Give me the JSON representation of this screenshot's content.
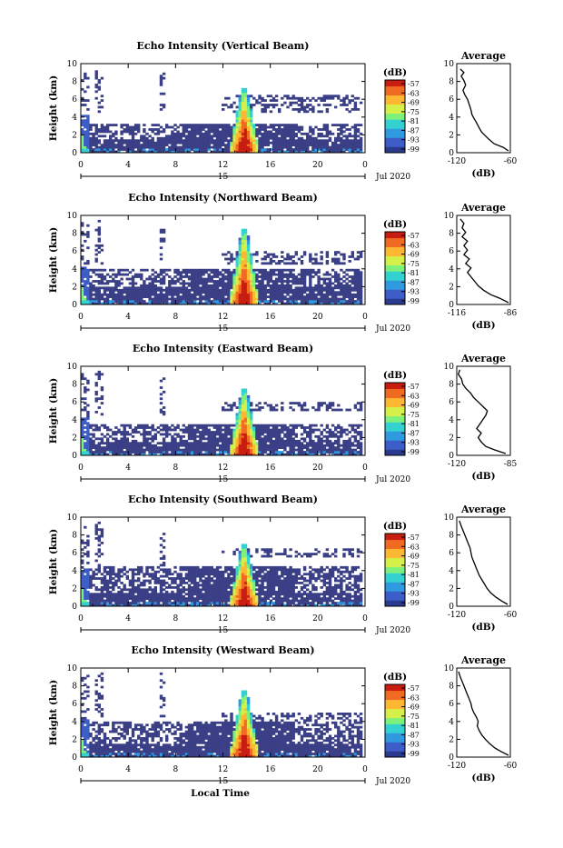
{
  "figure": {
    "bottom_xlabel": "Local Time",
    "date_label": "Jul 2020",
    "colors": {
      "colormap": [
        "#2a3b8f",
        "#3d5dc8",
        "#2f9ae0",
        "#33d1d0",
        "#7ef07c",
        "#d6f04a",
        "#fdb733",
        "#f06a22",
        "#c81d10"
      ],
      "background_echo": "#3a3f86",
      "frame": "#000000"
    }
  },
  "chart_data": [
    {
      "type": "heatmap",
      "title": "Echo Intensity (Vertical Beam)",
      "ylabel": "Height (km)",
      "y_ticks": [
        "0",
        "2",
        "4",
        "6",
        "8",
        "10"
      ],
      "ylim": [
        0,
        10
      ],
      "x_ticks": [
        "0",
        "4",
        "8",
        "12",
        "16",
        "20",
        "0"
      ],
      "xlim": [
        0,
        24
      ],
      "day_marker": "15",
      "date_label": "Jul 2020",
      "colorbar": {
        "unit": "(dB)",
        "ticks": [
          "-57",
          "-63",
          "-69",
          "-75",
          "-81",
          "-87",
          "-93",
          "-99"
        ]
      },
      "profile": {
        "title": "Average",
        "xlabel": "(dB)",
        "x_ticks": [
          "-120",
          "-60"
        ],
        "xlim": [
          -120,
          -60
        ],
        "y_ticks": [
          "0",
          "2",
          "4",
          "6",
          "8",
          "10"
        ],
        "ylim": [
          0,
          10
        ],
        "points": [
          [
            -62,
            0.2
          ],
          [
            -68,
            0.6
          ],
          [
            -78,
            1.0
          ],
          [
            -84,
            1.5
          ],
          [
            -88,
            1.9
          ],
          [
            -92,
            2.3
          ],
          [
            -95,
            2.8
          ],
          [
            -98,
            3.4
          ],
          [
            -101,
            3.9
          ],
          [
            -103,
            4.3
          ],
          [
            -104,
            4.8
          ],
          [
            -106,
            5.4
          ],
          [
            -108,
            6.0
          ],
          [
            -111,
            6.5
          ],
          [
            -113,
            7.0
          ],
          [
            -110,
            7.6
          ],
          [
            -112,
            8.1
          ],
          [
            -115,
            8.6
          ],
          [
            -112,
            9.0
          ],
          [
            -116,
            9.4
          ]
        ]
      },
      "features": {
        "convective_core": {
          "x_center": 13.8,
          "top_km": 7.3,
          "peak_db": -57
        },
        "surface_layer_top_km": 1.5,
        "stratiform_layer_km": [
          1.5,
          3.2
        ],
        "upper_layer_km": [
          4.5,
          6.5
        ]
      }
    },
    {
      "type": "heatmap",
      "title": "Echo Intensity (Northward Beam)",
      "ylabel": "Height (km)",
      "y_ticks": [
        "0",
        "2",
        "4",
        "6",
        "8",
        "10"
      ],
      "ylim": [
        0,
        10
      ],
      "x_ticks": [
        "0",
        "4",
        "8",
        "12",
        "16",
        "20",
        "0"
      ],
      "xlim": [
        0,
        24
      ],
      "day_marker": "15",
      "date_label": "Jul 2020",
      "colorbar": {
        "unit": "(dB)",
        "ticks": [
          "-57",
          "-63",
          "-69",
          "-75",
          "-81",
          "-87",
          "-93",
          "-99"
        ]
      },
      "profile": {
        "title": "Average",
        "xlabel": "(dB)",
        "x_ticks": [
          "-116",
          "-86"
        ],
        "xlim": [
          -116,
          -86
        ],
        "y_ticks": [
          "0",
          "2",
          "4",
          "6",
          "8",
          "10"
        ],
        "ylim": [
          0,
          10
        ],
        "points": [
          [
            -87,
            0.2
          ],
          [
            -92,
            0.7
          ],
          [
            -97,
            1.1
          ],
          [
            -101,
            1.6
          ],
          [
            -104,
            2.1
          ],
          [
            -106,
            2.6
          ],
          [
            -108,
            3.1
          ],
          [
            -110,
            3.6
          ],
          [
            -108,
            4.1
          ],
          [
            -111,
            4.6
          ],
          [
            -109,
            5.1
          ],
          [
            -112,
            5.6
          ],
          [
            -110,
            6.1
          ],
          [
            -112,
            6.6
          ],
          [
            -110,
            7.1
          ],
          [
            -113,
            7.6
          ],
          [
            -111,
            8.1
          ],
          [
            -113,
            8.6
          ],
          [
            -112,
            9.1
          ],
          [
            -114,
            9.6
          ]
        ]
      },
      "features": {
        "convective_core": {
          "x_center": 13.8,
          "top_km": 8.5,
          "peak_db": -57
        },
        "surface_layer_top_km": 2.0,
        "stratiform_layer_km": [
          1.0,
          4.0
        ],
        "upper_layer_km": [
          4.5,
          6.0
        ]
      }
    },
    {
      "type": "heatmap",
      "title": "Echo Intensity (Eastward Beam)",
      "ylabel": "Height (km)",
      "y_ticks": [
        "0",
        "2",
        "4",
        "6",
        "8",
        "10"
      ],
      "ylim": [
        0,
        10
      ],
      "x_ticks": [
        "0",
        "4",
        "8",
        "12",
        "16",
        "20",
        "0"
      ],
      "xlim": [
        0,
        24
      ],
      "day_marker": "15",
      "date_label": "Jul 2020",
      "colorbar": {
        "unit": "(dB)",
        "ticks": [
          "-57",
          "-63",
          "-69",
          "-75",
          "-81",
          "-87",
          "-93",
          "-99"
        ]
      },
      "profile": {
        "title": "Average",
        "xlabel": "(dB)",
        "x_ticks": [
          "-120",
          "-85"
        ],
        "xlim": [
          -120,
          -85
        ],
        "y_ticks": [
          "0",
          "2",
          "4",
          "6",
          "8",
          "10"
        ],
        "ylim": [
          0,
          10
        ],
        "points": [
          [
            -88,
            0.2
          ],
          [
            -95,
            0.6
          ],
          [
            -101,
            1.0
          ],
          [
            -104,
            1.5
          ],
          [
            -106,
            2.0
          ],
          [
            -104,
            2.5
          ],
          [
            -107,
            3.0
          ],
          [
            -105,
            3.5
          ],
          [
            -103,
            4.0
          ],
          [
            -101,
            4.5
          ],
          [
            -100,
            5.0
          ],
          [
            -103,
            5.5
          ],
          [
            -106,
            6.0
          ],
          [
            -109,
            6.5
          ],
          [
            -111,
            7.0
          ],
          [
            -114,
            7.5
          ],
          [
            -116,
            8.0
          ],
          [
            -117,
            8.6
          ],
          [
            -119,
            9.1
          ],
          [
            -118,
            9.6
          ]
        ]
      },
      "features": {
        "convective_core": {
          "x_center": 13.8,
          "top_km": 7.4,
          "peak_db": -57
        },
        "surface_layer_top_km": 1.5,
        "stratiform_layer_km": [
          0.5,
          3.5
        ],
        "upper_layer_km": [
          5.0,
          6.0
        ]
      }
    },
    {
      "type": "heatmap",
      "title": "Echo Intensity (Southward Beam)",
      "ylabel": "Height (km)",
      "y_ticks": [
        "0",
        "2",
        "4",
        "6",
        "8",
        "10"
      ],
      "ylim": [
        0,
        10
      ],
      "x_ticks": [
        "0",
        "4",
        "8",
        "12",
        "16",
        "20",
        "0"
      ],
      "xlim": [
        0,
        24
      ],
      "day_marker": "15",
      "date_label": "Jul 2020",
      "colorbar": {
        "unit": "(dB)",
        "ticks": [
          "-57",
          "-63",
          "-69",
          "-75",
          "-81",
          "-87",
          "-93",
          "-99"
        ]
      },
      "profile": {
        "title": "Average",
        "xlabel": "(dB)",
        "x_ticks": [
          "-120",
          "-60"
        ],
        "xlim": [
          -120,
          -60
        ],
        "y_ticks": [
          "0",
          "2",
          "4",
          "6",
          "8",
          "10"
        ],
        "ylim": [
          0,
          10
        ],
        "points": [
          [
            -63,
            0.2
          ],
          [
            -70,
            0.6
          ],
          [
            -76,
            1.0
          ],
          [
            -82,
            1.5
          ],
          [
            -86,
            2.0
          ],
          [
            -89,
            2.5
          ],
          [
            -92,
            3.0
          ],
          [
            -95,
            3.5
          ],
          [
            -97,
            4.0
          ],
          [
            -99,
            4.5
          ],
          [
            -101,
            5.0
          ],
          [
            -103,
            5.5
          ],
          [
            -104,
            6.0
          ],
          [
            -105,
            6.5
          ],
          [
            -107,
            7.0
          ],
          [
            -109,
            7.5
          ],
          [
            -111,
            8.0
          ],
          [
            -113,
            8.5
          ],
          [
            -115,
            9.0
          ],
          [
            -117,
            9.6
          ]
        ]
      },
      "features": {
        "convective_core": {
          "x_center": 13.8,
          "top_km": 7.0,
          "peak_db": -57
        },
        "surface_layer_top_km": 1.5,
        "stratiform_layer_km": [
          1.0,
          4.5
        ],
        "upper_layer_km": [
          5.5,
          6.5
        ]
      }
    },
    {
      "type": "heatmap",
      "title": "Echo Intensity (Westward Beam)",
      "ylabel": "Height (km)",
      "y_ticks": [
        "0",
        "2",
        "4",
        "6",
        "8",
        "10"
      ],
      "ylim": [
        0,
        10
      ],
      "x_ticks": [
        "0",
        "4",
        "8",
        "12",
        "16",
        "20",
        "0"
      ],
      "xlim": [
        0,
        24
      ],
      "day_marker": "15",
      "date_label": "Jul 2020",
      "colorbar": {
        "unit": "(dB)",
        "ticks": [
          "-57",
          "-63",
          "-69",
          "-75",
          "-81",
          "-87",
          "-93",
          "-99"
        ]
      },
      "profile": {
        "title": "Average",
        "xlabel": "(dB)",
        "x_ticks": [
          "-120",
          "-60"
        ],
        "xlim": [
          -120,
          -60
        ],
        "y_ticks": [
          "0",
          "2",
          "4",
          "6",
          "8",
          "10"
        ],
        "ylim": [
          0,
          10
        ],
        "points": [
          [
            -62,
            0.2
          ],
          [
            -70,
            0.6
          ],
          [
            -77,
            1.0
          ],
          [
            -83,
            1.5
          ],
          [
            -88,
            2.0
          ],
          [
            -92,
            2.5
          ],
          [
            -95,
            3.0
          ],
          [
            -97,
            3.5
          ],
          [
            -96,
            4.0
          ],
          [
            -98,
            4.5
          ],
          [
            -101,
            5.0
          ],
          [
            -103,
            5.5
          ],
          [
            -104,
            6.0
          ],
          [
            -106,
            6.5
          ],
          [
            -108,
            7.0
          ],
          [
            -110,
            7.5
          ],
          [
            -112,
            8.0
          ],
          [
            -114,
            8.5
          ],
          [
            -116,
            9.0
          ],
          [
            -118,
            9.6
          ]
        ]
      },
      "features": {
        "convective_core": {
          "x_center": 13.8,
          "top_km": 7.5,
          "peak_db": -57
        },
        "surface_layer_top_km": 1.5,
        "stratiform_layer_km": [
          1.0,
          4.0
        ],
        "upper_layer_km": [
          4.0,
          5.0
        ]
      }
    }
  ]
}
